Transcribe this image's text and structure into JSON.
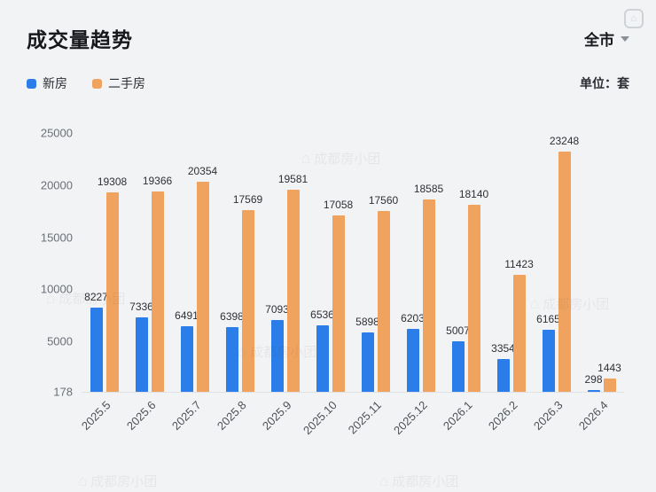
{
  "header": {
    "title": "成交量趋势",
    "scope": "全市",
    "unit_label": "单位：套"
  },
  "legend": [
    {
      "label": "新房",
      "color": "#2b7de9"
    },
    {
      "label": "二手房",
      "color": "#f0a35f"
    }
  ],
  "watermark": {
    "text": "成都房小团"
  },
  "chart_data": {
    "type": "bar",
    "title": "成交量趋势",
    "categories": [
      "2025.5",
      "2025.6",
      "2025.7",
      "2025.8",
      "2025.9",
      "2025.10",
      "2025.11",
      "2025.12",
      "2026.1",
      "2026.2",
      "2026.3",
      "2026.4"
    ],
    "series": [
      {
        "name": "新房",
        "color": "#2b7de9",
        "values": [
          8227,
          7336,
          6491,
          6398,
          7093,
          6536,
          5898,
          6203,
          5007,
          3354,
          6165,
          298
        ]
      },
      {
        "name": "二手房",
        "color": "#f0a35f",
        "values": [
          19308,
          19366,
          20354,
          17569,
          19581,
          17058,
          17560,
          18585,
          18140,
          11423,
          23248,
          1443
        ]
      }
    ],
    "unit": "套",
    "y_ticks": [
      178,
      5000,
      10000,
      15000,
      20000,
      25000
    ],
    "ylim": [
      178,
      25000
    ],
    "grid": false,
    "legend_position": "top-left",
    "value_labels": true,
    "x_label_rotation": -45
  }
}
